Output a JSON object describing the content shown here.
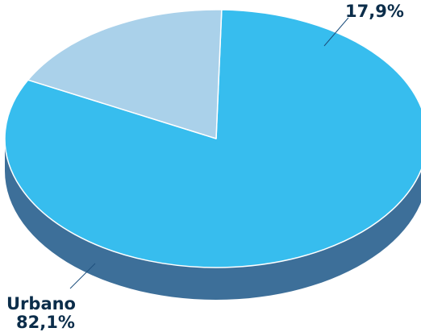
{
  "chart_data": {
    "type": "pie",
    "style": "3d",
    "slices": [
      {
        "label": "Urbano",
        "value": 82.1,
        "value_label": "82,1%",
        "color": "#37bdee",
        "side_color": "#3d6f99"
      },
      {
        "label": "",
        "value": 17.9,
        "value_label": "17,9%",
        "color": "#aad1ea",
        "side_color": "#7fa7c4"
      }
    ],
    "title": "",
    "legend": "none"
  }
}
